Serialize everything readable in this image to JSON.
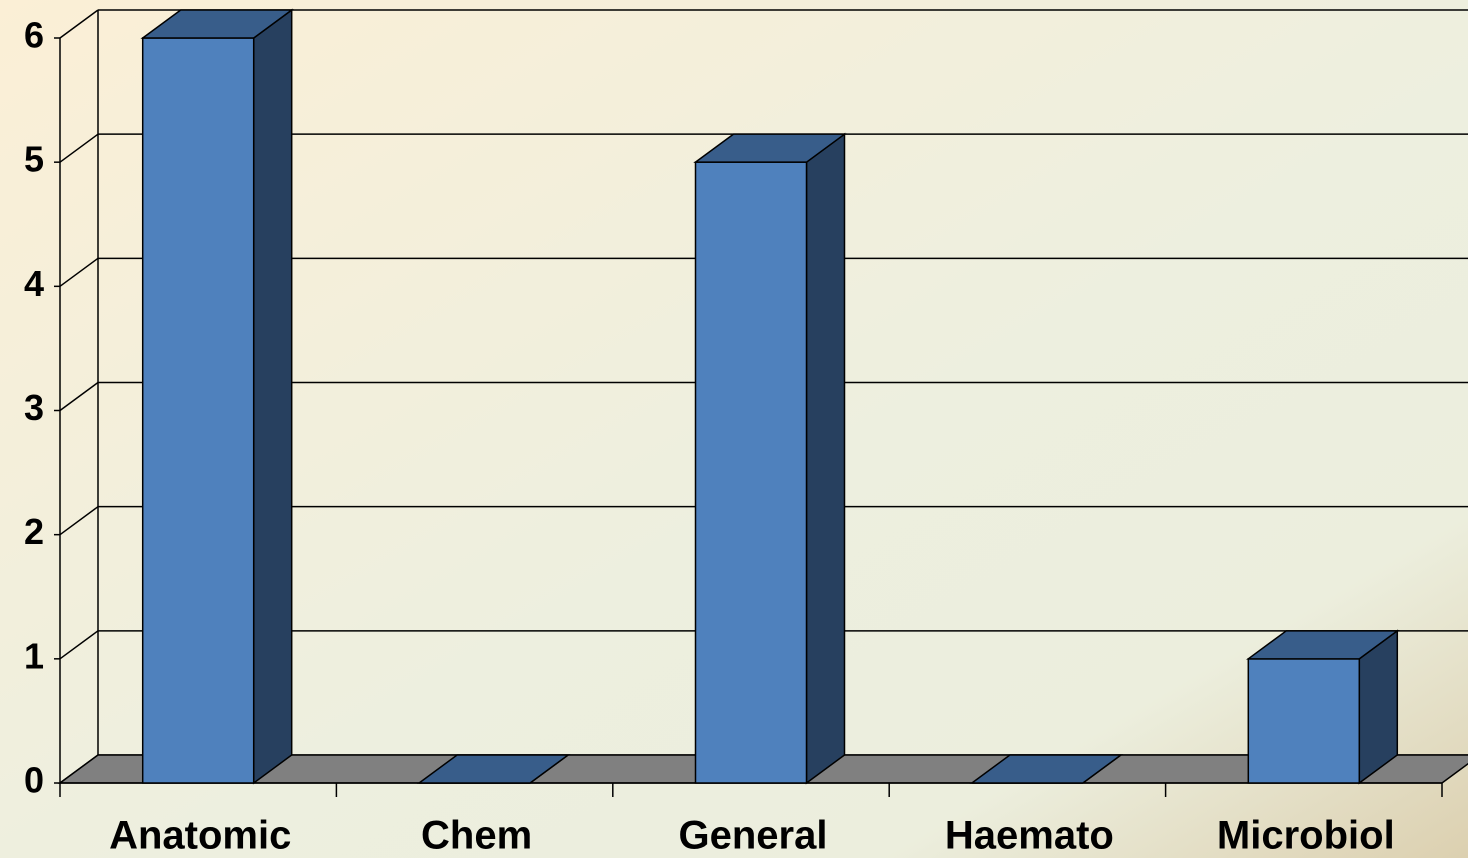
{
  "chart_data": {
    "type": "bar3d",
    "categories": [
      "Anatomic",
      "Chem",
      "General",
      "Haemato",
      "Microbiol"
    ],
    "values": [
      6,
      0,
      5,
      0,
      1
    ],
    "color": "#4f81bd",
    "ylim": [
      0,
      6
    ],
    "yticks": [
      0,
      1,
      2,
      3,
      4,
      5,
      6
    ],
    "grid": true
  }
}
